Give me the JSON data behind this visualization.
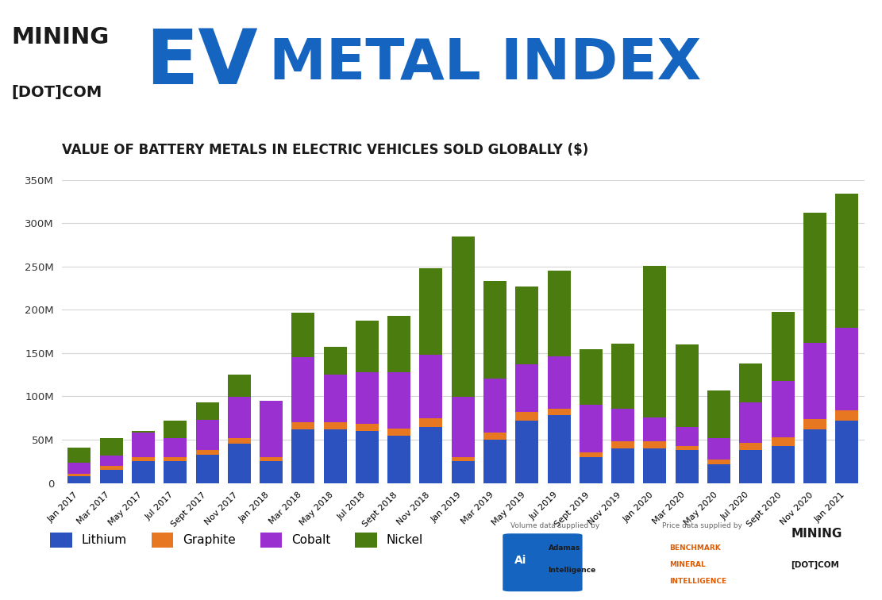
{
  "title": "VALUE OF BATTERY METALS IN ELECTRIC VEHICLES SOLD GLOBALLY ($)",
  "categories": [
    "Jan 2017",
    "Mar 2017",
    "May 2017",
    "Jul 2017",
    "Sept 2017",
    "Nov 2017",
    "Jan 2018",
    "Mar 2018",
    "May 2018",
    "Jul 2018",
    "Sept 2018",
    "Nov 2018",
    "Jan 2019",
    "Mar 2019",
    "May 2019",
    "Jul 2019",
    "Sept 2019",
    "Nov 2019",
    "Jan 2020",
    "Mar 2020",
    "May 2020",
    "Jul 2020",
    "Sept 2020",
    "Nov 2020",
    "Jan 2021"
  ],
  "lithium": [
    8,
    15,
    25,
    25,
    33,
    45,
    25,
    62,
    62,
    60,
    55,
    65,
    25,
    50,
    72,
    78,
    30,
    40,
    40,
    38,
    22,
    38,
    43,
    62,
    72
  ],
  "graphite": [
    3,
    5,
    5,
    5,
    5,
    7,
    5,
    8,
    8,
    8,
    8,
    10,
    5,
    8,
    10,
    8,
    5,
    8,
    8,
    5,
    5,
    8,
    10,
    12,
    12
  ],
  "cobalt": [
    12,
    12,
    28,
    22,
    35,
    48,
    65,
    75,
    55,
    60,
    65,
    73,
    70,
    63,
    55,
    60,
    55,
    38,
    28,
    22,
    25,
    47,
    65,
    88,
    95
  ],
  "nickel": [
    18,
    20,
    2,
    20,
    20,
    25,
    0,
    52,
    32,
    60,
    65,
    100,
    185,
    112,
    90,
    99,
    65,
    75,
    175,
    95,
    55,
    45,
    80,
    150,
    155
  ],
  "colors": {
    "lithium": "#2B52BE",
    "graphite": "#E87722",
    "cobalt": "#9B30D0",
    "nickel": "#4A7C10"
  },
  "ylim": [
    0,
    350
  ],
  "yticks": [
    0,
    50,
    100,
    150,
    200,
    250,
    300,
    350
  ],
  "background_color": "#ffffff",
  "grid_color": "#d5d5d5",
  "title_color": "#1a1a1a",
  "header_mining_color": "#1a1a1a",
  "header_ev_color": "#1565C0"
}
